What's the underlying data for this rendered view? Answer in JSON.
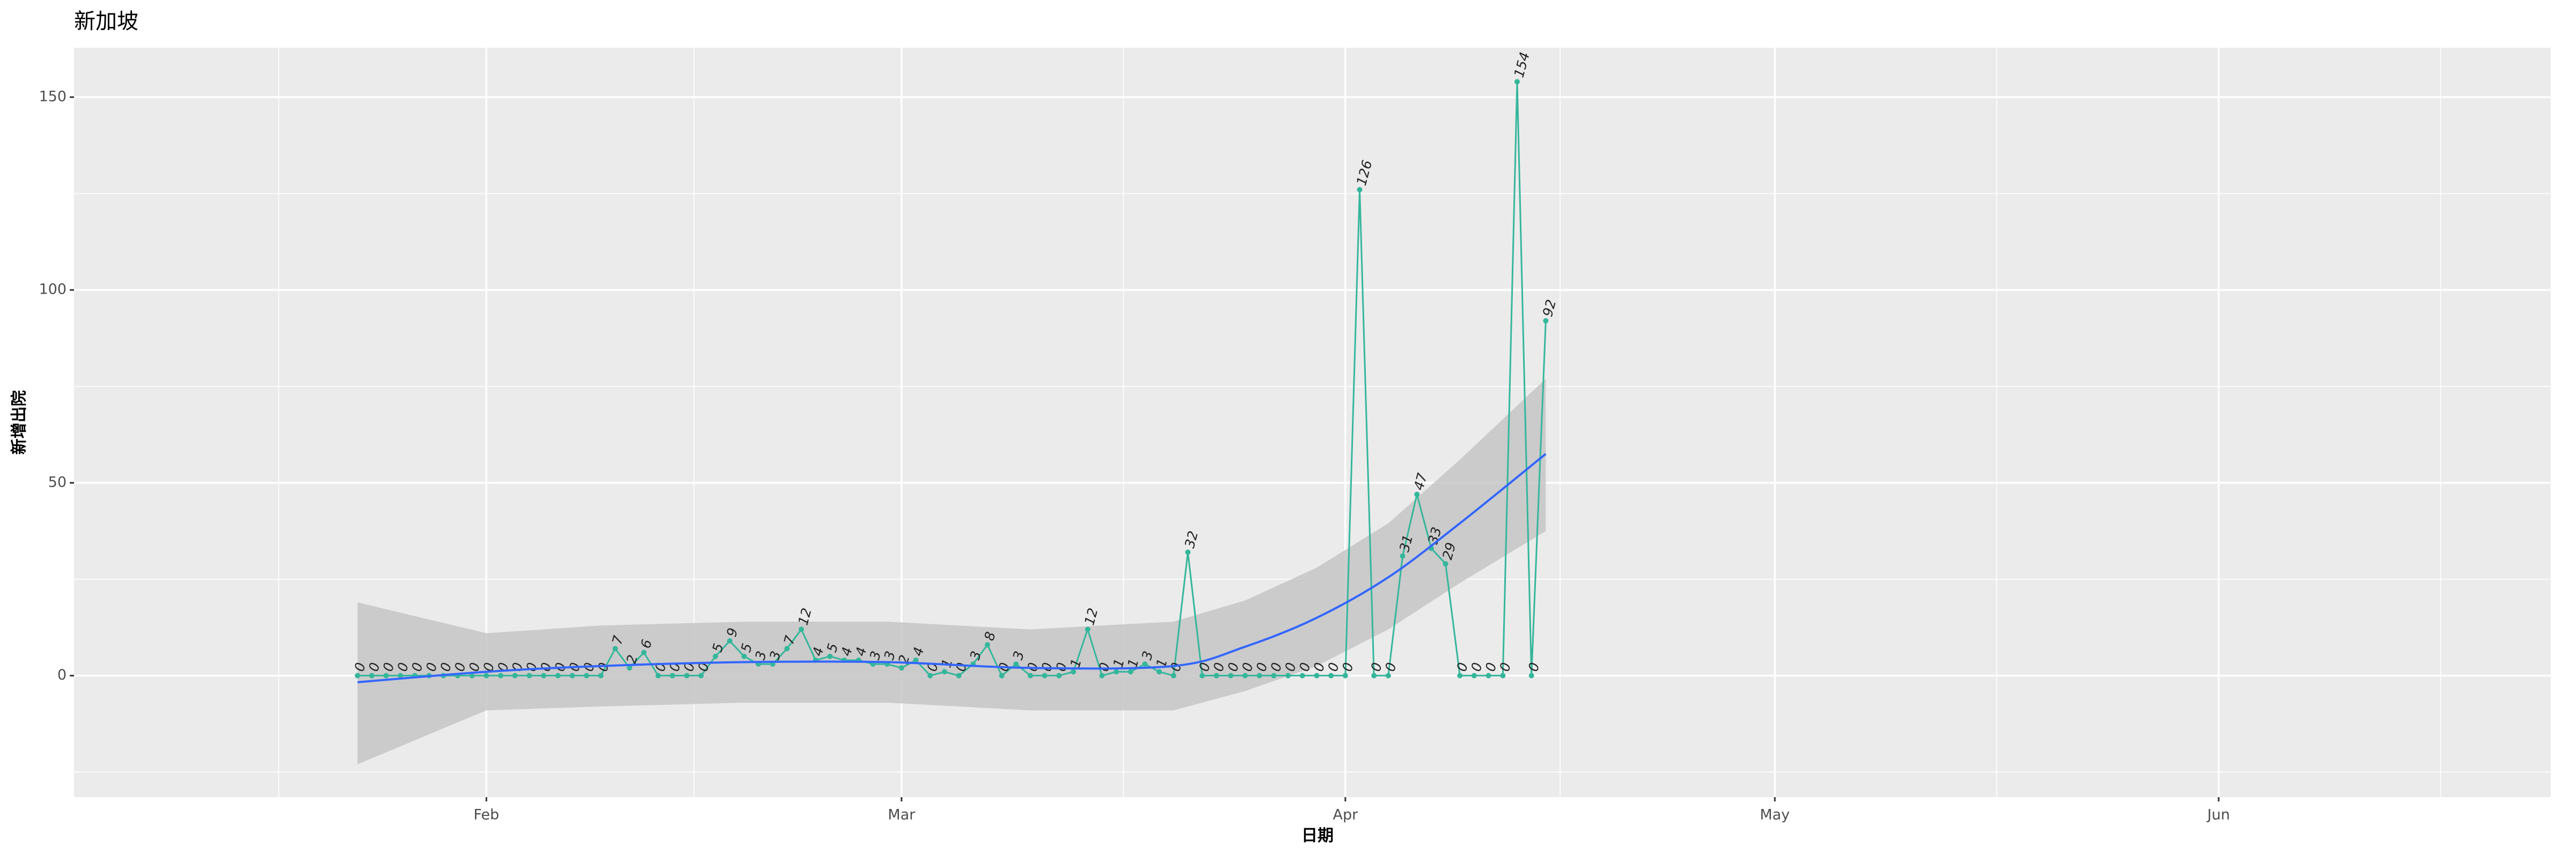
{
  "chart_data": {
    "type": "line",
    "title": "新加坡",
    "x_label": "日期",
    "y_label": "新增出院",
    "x": [
      23,
      24,
      25,
      26,
      27,
      28,
      29,
      30,
      31,
      32,
      33,
      34,
      35,
      36,
      37,
      38,
      39,
      40,
      41,
      42,
      43,
      44,
      45,
      46,
      47,
      48,
      49,
      50,
      51,
      52,
      53,
      54,
      55,
      56,
      57,
      58,
      59,
      60,
      61,
      62,
      63,
      64,
      65,
      66,
      67,
      68,
      69,
      70,
      71,
      72,
      73,
      74,
      75,
      76,
      77,
      78,
      79,
      80,
      81,
      82,
      83,
      84,
      85,
      86,
      87,
      88,
      89,
      90,
      91,
      92,
      93,
      94,
      95,
      96,
      97,
      98,
      99,
      100,
      101,
      102,
      103,
      104,
      105,
      106
    ],
    "series": [
      {
        "color": "#35b69b",
        "values": [
          0,
          0,
          0,
          0,
          0,
          0,
          0,
          0,
          0,
          0,
          0,
          0,
          0,
          0,
          0,
          0,
          0,
          0,
          7,
          2,
          6,
          0,
          0,
          0,
          0,
          5,
          9,
          5,
          3,
          3,
          7,
          12,
          4,
          5,
          4,
          4,
          3,
          3,
          2,
          4,
          0,
          1,
          0,
          3,
          8,
          0,
          3,
          0,
          0,
          0,
          1,
          12,
          0,
          1,
          1,
          3,
          1,
          0,
          32,
          0,
          0,
          0,
          0,
          0,
          0,
          0,
          0,
          0,
          0,
          0,
          126,
          0,
          0,
          31,
          47,
          33,
          29,
          0,
          0,
          0,
          0,
          154,
          0,
          92
        ]
      }
    ],
    "trend": {
      "color": "#3366ff",
      "band_color": "#c6c6c6",
      "x": [
        23,
        32,
        40,
        50,
        60,
        70,
        80,
        85,
        90,
        95,
        100,
        106
      ],
      "values": [
        -1.7,
        1,
        2.5,
        3.5,
        3.5,
        2,
        2.5,
        7.5,
        15,
        25.5,
        39.5,
        57.5
      ],
      "lower": [
        -23,
        -9,
        -8,
        -7,
        -7,
        -9,
        -9,
        -4,
        2.5,
        12,
        24,
        37.5
      ],
      "upper": [
        19,
        11,
        13,
        14,
        14,
        12,
        14,
        19.5,
        28,
        39.5,
        56,
        77
      ]
    },
    "xlim": [
      3.2,
      176.2
    ],
    "xticks": [
      {
        "value": 32,
        "label": "Feb"
      },
      {
        "value": 61,
        "label": "Mar"
      },
      {
        "value": 92,
        "label": "Apr"
      },
      {
        "value": 122,
        "label": "May"
      },
      {
        "value": 153,
        "label": "Jun"
      }
    ],
    "ylim": [
      -31.5,
      162.8
    ],
    "yticks": [
      0,
      50,
      100,
      150
    ],
    "grid": true
  }
}
